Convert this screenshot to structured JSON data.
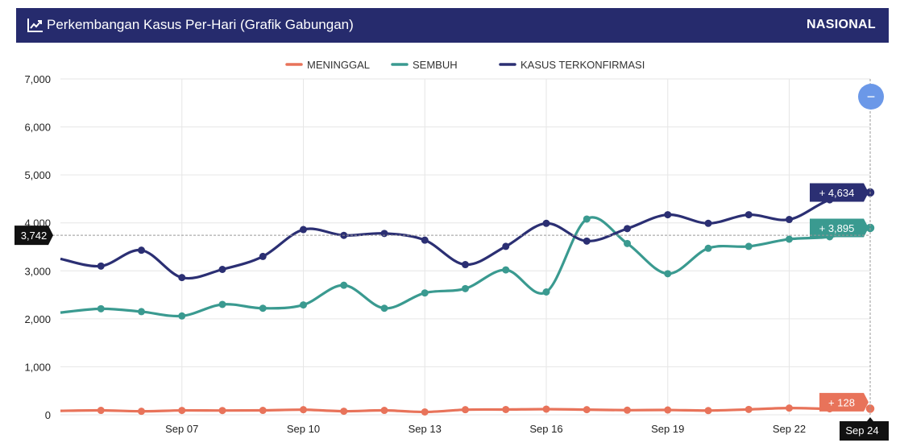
{
  "header": {
    "title": "Perkembangan Kasus Per-Hari (Grafik Gabungan)",
    "scope": "NASIONAL",
    "icon": "line-chart-icon"
  },
  "reset_zoom_button": {
    "icon": "minus-icon",
    "label": "−"
  },
  "crosshair": {
    "y_value": 3742,
    "label": "3,742",
    "x_label": "Sep 24"
  },
  "colors": {
    "meninggal": "#e8735a",
    "sembuh": "#3a9a90",
    "terkonfirmasi": "#2b2f73",
    "header": "#262b6d"
  },
  "chart_data": {
    "type": "line",
    "title": "Perkembangan Kasus Per-Hari (Grafik Gabungan)",
    "xlabel": "",
    "ylabel": "",
    "ylim": [
      0,
      7000
    ],
    "yticks": [
      0,
      1000,
      2000,
      3000,
      4000,
      5000,
      6000,
      7000
    ],
    "ytick_labels": [
      "0",
      "1,000",
      "2,000",
      "3,000",
      "4,000",
      "5,000",
      "6,000",
      "7,000"
    ],
    "x": [
      "Sep 04",
      "Sep 05",
      "Sep 06",
      "Sep 07",
      "Sep 08",
      "Sep 09",
      "Sep 10",
      "Sep 11",
      "Sep 12",
      "Sep 13",
      "Sep 14",
      "Sep 15",
      "Sep 16",
      "Sep 17",
      "Sep 18",
      "Sep 19",
      "Sep 20",
      "Sep 21",
      "Sep 22",
      "Sep 23",
      "Sep 24"
    ],
    "xtick_labels": [
      "Sep 07",
      "Sep 10",
      "Sep 13",
      "Sep 16",
      "Sep 19",
      "Sep 22",
      "Sep 24"
    ],
    "legend": [
      "MENINGGAL",
      "SEMBUH",
      "KASUS TERKONFIRMASI"
    ],
    "legend_position": "top-center",
    "series": [
      {
        "name": "MENINGGAL",
        "color": "#e8735a",
        "values": [
          82,
          92,
          73,
          91,
          89,
          92,
          106,
          74,
          92,
          59,
          106,
          110,
          118,
          107,
          96,
          100,
          88,
          112,
          140,
          124,
          128
        ],
        "end_label": "+ 128"
      },
      {
        "name": "SEMBUH",
        "color": "#3a9a90",
        "values": [
          2130,
          2210,
          2150,
          2060,
          2300,
          2220,
          2290,
          2700,
          2220,
          2540,
          2630,
          3020,
          2560,
          4080,
          3570,
          2940,
          3470,
          3510,
          3660,
          3710,
          3895
        ],
        "end_label": "+ 3,895"
      },
      {
        "name": "KASUS TERKONFIRMASI",
        "color": "#2b2f73",
        "values": [
          3250,
          3100,
          3430,
          2860,
          3030,
          3300,
          3860,
          3740,
          3780,
          3640,
          3130,
          3510,
          3990,
          3620,
          3880,
          4170,
          3990,
          4170,
          4070,
          4480,
          4634
        ],
        "end_label": "+ 4,634"
      }
    ]
  }
}
